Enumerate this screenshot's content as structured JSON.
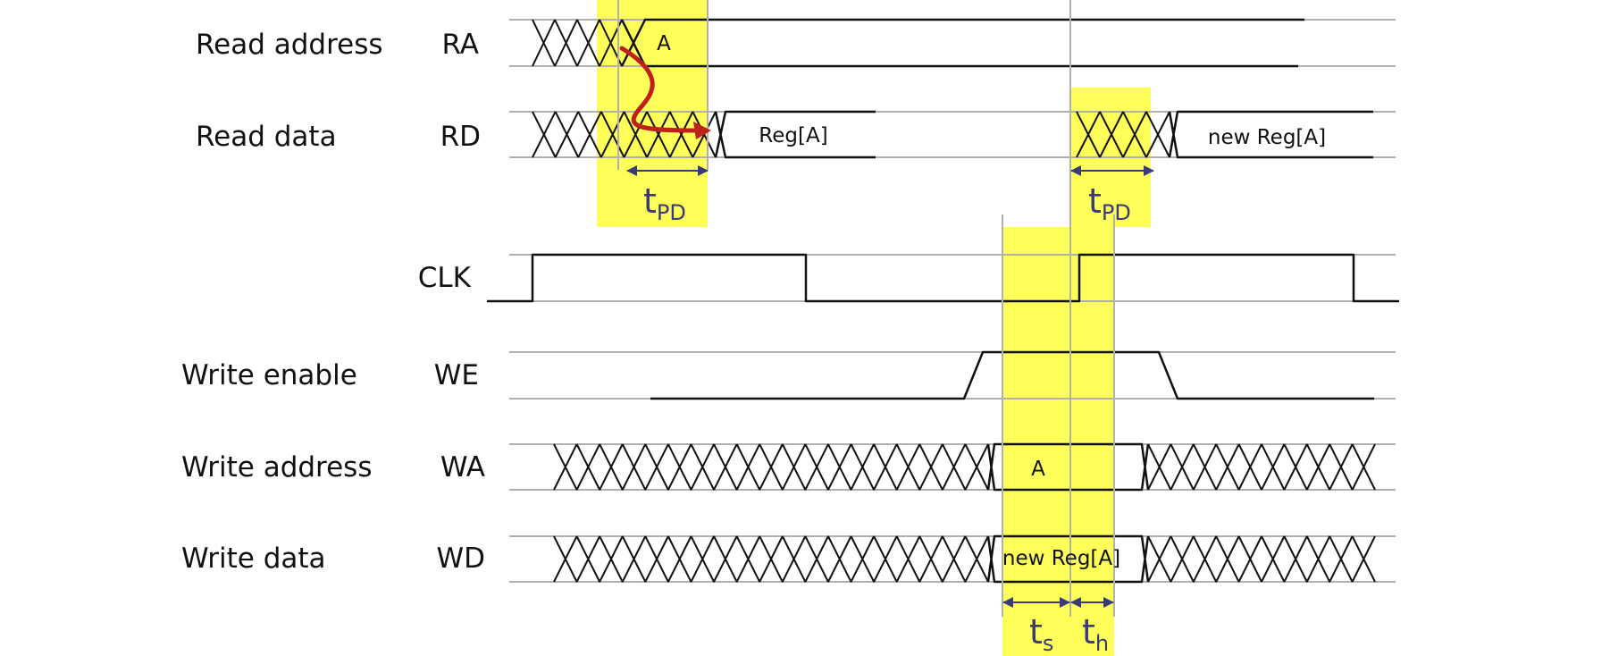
{
  "diagram": {
    "colors": {
      "highlight": "#ffff59",
      "reference": "#b0b0b0",
      "signal": "#111111",
      "dimension": "#3a3a7a",
      "arrow": "#c0201c"
    },
    "signals": [
      {
        "id": "ra",
        "description": "Read address",
        "abbr": "RA"
      },
      {
        "id": "rd",
        "description": "Read data",
        "abbr": "RD"
      },
      {
        "id": "clk",
        "description": "",
        "abbr": "CLK"
      },
      {
        "id": "we",
        "description": "Write enable",
        "abbr": "WE"
      },
      {
        "id": "wa",
        "description": "Write address",
        "abbr": "WA"
      },
      {
        "id": "wd",
        "description": "Write data",
        "abbr": "WD"
      }
    ],
    "values": {
      "ra_value": "A",
      "rd_value_1": "Reg[A]",
      "rd_value_2": "new Reg[A]",
      "wa_value": "A",
      "wd_value": "new Reg[A]"
    },
    "timing_labels": {
      "tpd1": {
        "main": "t",
        "sub": "PD"
      },
      "tpd2": {
        "main": "t",
        "sub": "PD"
      },
      "ts": {
        "main": "t",
        "sub": "s"
      },
      "th": {
        "main": "t",
        "sub": "h"
      }
    }
  }
}
